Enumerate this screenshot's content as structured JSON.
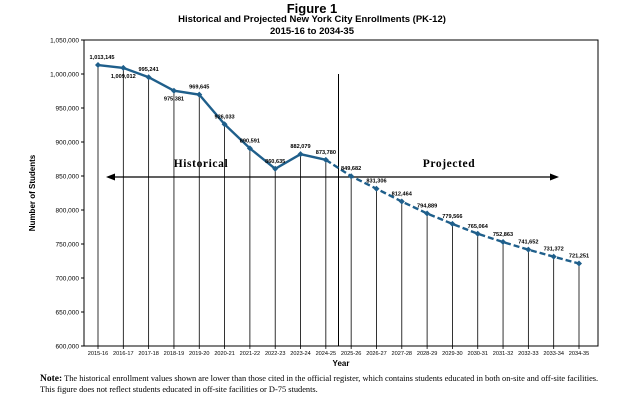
{
  "chart_data": {
    "type": "line",
    "title": "Figure 1",
    "subtitle": "Historical and Projected New York City Enrollments (PK-12)",
    "subtitle2": "2015-16 to 2034-35",
    "xlabel": "Year",
    "ylabel": "Number of Students",
    "ylim": [
      600000,
      1050000
    ],
    "yticks": [
      "600,000",
      "650,000",
      "700,000",
      "750,000",
      "800,000",
      "850,000",
      "900,000",
      "950,000",
      "1,000,000",
      "1,050,000"
    ],
    "categories": [
      "2015-16",
      "2016-17",
      "2017-18",
      "2018-19",
      "2019-20",
      "2020-21",
      "2021-22",
      "2022-23",
      "2023-24",
      "2024-25",
      "2025-26",
      "2026-27",
      "2027-28",
      "2028-29",
      "2029-30",
      "2030-31",
      "2031-32",
      "2032-33",
      "2033-34",
      "2034-35"
    ],
    "values": [
      1013145,
      1009012,
      995241,
      975381,
      969645,
      926033,
      890591,
      860635,
      882079,
      873780,
      849682,
      831306,
      812464,
      794889,
      779566,
      765064,
      752863,
      741652,
      731372,
      721251
    ],
    "data_labels": [
      "1,013,145",
      "1,009,012",
      "995,241",
      "975,381",
      "969,645",
      "926,033",
      "890,591",
      "860,635",
      "882,079",
      "873,780",
      "849,682",
      "831,306",
      "812,464",
      "794,889",
      "779,566",
      "765,064",
      "752,863",
      "741,652",
      "731,372",
      "721,251"
    ],
    "historical_label": "Historical",
    "projected_label": "Projected",
    "line_color": "#1f5f8b",
    "grid": false
  },
  "note": {
    "label": "Note:",
    "text": "The historical enrollment values shown are lower than those cited in the official register, which contains students educated in both on-site and off-site facilities. This figure does not reflect students educated in off-site facilities or D-75 students."
  }
}
